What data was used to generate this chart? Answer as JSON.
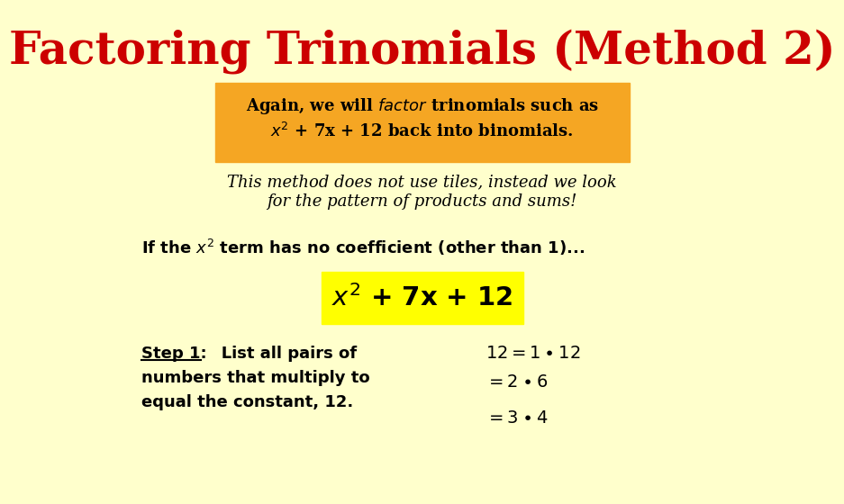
{
  "bg_color": "#ffffcc",
  "title": "Factoring Trinomials (Method 2)",
  "title_color": "#cc0000",
  "title_fontsize": 36,
  "orange_box_color": "#f5a623",
  "yellow_box_color": "#ffff00",
  "text_color": "#000000"
}
